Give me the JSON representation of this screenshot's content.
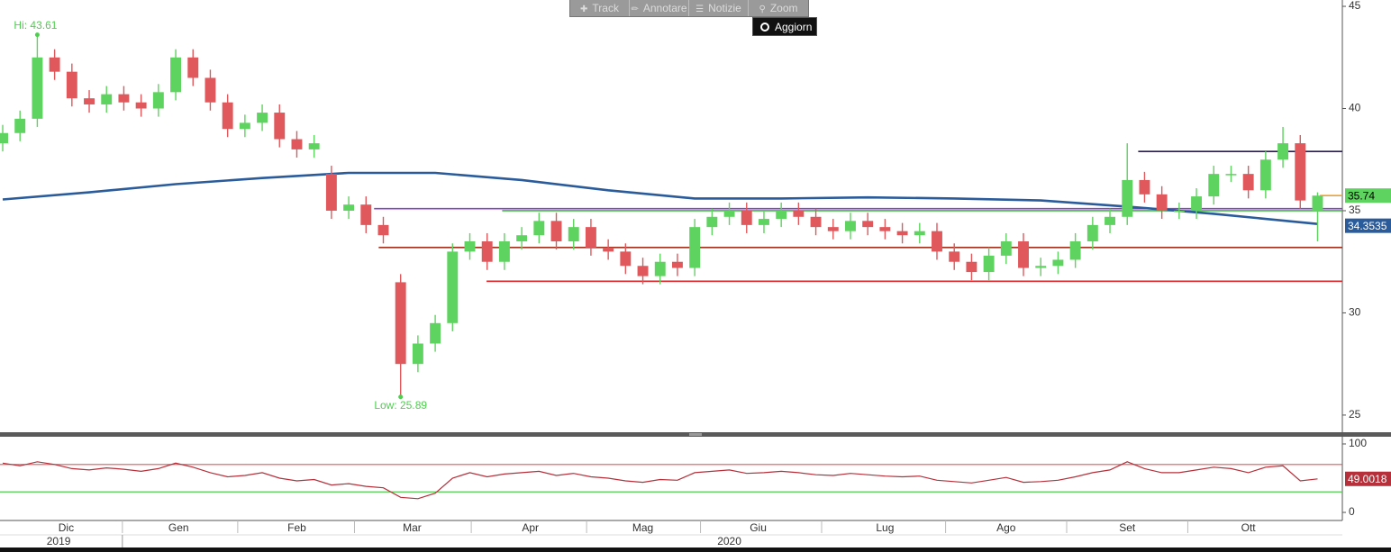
{
  "toolbar": {
    "buttons": [
      "Track",
      "Annotare",
      "Notizie",
      "Zoom"
    ],
    "refresh": "Aggiorn"
  },
  "chart_data": [
    {
      "type": "candlestick",
      "up_color": "#5fd35f",
      "down_color": "#e0585c",
      "xlim": [
        -0.47,
        232.3
      ],
      "ylim": [
        24.16,
        45.31
      ],
      "yticks": [
        25,
        30,
        35,
        40,
        45
      ],
      "xticks": [
        {
          "value": 11,
          "label": "Dic"
        },
        {
          "value": 30.5,
          "label": "Gen"
        },
        {
          "value": 51,
          "label": "Feb"
        },
        {
          "value": 71,
          "label": "Mar"
        },
        {
          "value": 91.5,
          "label": "Apr"
        },
        {
          "value": 111,
          "label": "Mag"
        },
        {
          "value": 131,
          "label": "Giu"
        },
        {
          "value": 153,
          "label": "Lug"
        },
        {
          "value": 174,
          "label": "Ago"
        },
        {
          "value": 195,
          "label": "Set"
        },
        {
          "value": 216,
          "label": "Ott"
        }
      ],
      "years": [
        {
          "value": 9.7,
          "label": "2019"
        },
        {
          "value": 126,
          "label": "2020"
        }
      ],
      "hi_label": "Hi: 43.61",
      "low_label": "Low: 25.89",
      "label_color": "#4ccf4c",
      "x": [
        0,
        3,
        6,
        9,
        12,
        15,
        18,
        21,
        24,
        27,
        30,
        33,
        36,
        39,
        42,
        45,
        48,
        51,
        54,
        57,
        60,
        63,
        66,
        69,
        72,
        75,
        78,
        81,
        84,
        87,
        90,
        93,
        96,
        99,
        102,
        105,
        108,
        111,
        114,
        117,
        120,
        123,
        126,
        129,
        132,
        135,
        138,
        141,
        144,
        147,
        150,
        153,
        156,
        159,
        162,
        165,
        168,
        171,
        174,
        177,
        180,
        183,
        186,
        189,
        192,
        195,
        198,
        201,
        204,
        207,
        210,
        213,
        216,
        219,
        222,
        225,
        228
      ],
      "open": [
        38.3,
        38.8,
        39.5,
        42.5,
        41.8,
        40.5,
        40.2,
        40.7,
        40.3,
        40.0,
        40.8,
        42.5,
        41.5,
        40.3,
        39.0,
        39.3,
        39.8,
        38.5,
        38.0,
        36.8,
        35.0,
        35.3,
        34.3,
        31.5,
        27.5,
        28.5,
        29.5,
        33.0,
        33.5,
        32.5,
        33.5,
        33.8,
        34.5,
        33.5,
        34.2,
        33.2,
        33.0,
        32.3,
        31.8,
        32.5,
        32.2,
        34.2,
        34.7,
        35.0,
        34.3,
        34.6,
        35.0,
        34.7,
        34.2,
        34.0,
        34.5,
        34.2,
        34.0,
        33.8,
        34.0,
        33.0,
        32.5,
        32.0,
        32.8,
        33.5,
        32.2,
        32.3,
        32.6,
        33.5,
        34.3,
        34.7,
        36.5,
        35.8,
        35.0,
        35.0,
        35.7,
        36.8,
        36.8,
        36.0,
        37.5,
        38.3,
        35.0
      ],
      "high": [
        39.2,
        39.9,
        43.61,
        42.9,
        42.2,
        40.9,
        41.1,
        41.1,
        40.7,
        41.2,
        42.9,
        42.9,
        41.9,
        40.7,
        39.7,
        40.2,
        40.2,
        38.9,
        38.7,
        37.2,
        35.7,
        35.7,
        34.7,
        31.9,
        28.9,
        29.9,
        33.4,
        33.9,
        33.9,
        33.9,
        34.2,
        34.9,
        34.9,
        34.6,
        34.6,
        33.6,
        33.4,
        32.7,
        32.9,
        32.9,
        34.6,
        35.1,
        35.4,
        35.4,
        35.0,
        35.4,
        35.4,
        35.1,
        34.6,
        34.9,
        34.9,
        34.6,
        34.4,
        34.4,
        34.4,
        33.4,
        32.9,
        33.2,
        33.9,
        33.9,
        32.7,
        33.0,
        33.9,
        34.7,
        35.1,
        38.3,
        36.9,
        36.2,
        35.4,
        36.1,
        37.2,
        37.2,
        37.2,
        37.9,
        39.1,
        38.7,
        35.9
      ],
      "low": [
        37.9,
        38.4,
        39.1,
        41.4,
        40.1,
        39.8,
        39.8,
        39.9,
        39.6,
        39.6,
        40.4,
        41.1,
        39.9,
        38.6,
        38.6,
        38.9,
        38.1,
        37.6,
        37.6,
        34.6,
        34.6,
        33.9,
        33.4,
        25.89,
        27.1,
        28.1,
        29.1,
        32.6,
        32.1,
        32.1,
        33.1,
        33.4,
        33.1,
        33.1,
        32.8,
        32.6,
        31.9,
        31.4,
        31.4,
        31.8,
        31.8,
        33.8,
        34.3,
        33.9,
        33.9,
        34.2,
        34.3,
        33.8,
        33.6,
        33.6,
        33.8,
        33.6,
        33.4,
        33.4,
        32.6,
        32.1,
        31.6,
        31.6,
        32.4,
        31.8,
        31.8,
        31.9,
        32.2,
        33.1,
        33.9,
        34.3,
        35.4,
        34.6,
        34.6,
        34.6,
        35.3,
        36.4,
        35.6,
        35.6,
        37.1,
        35.1,
        33.5
      ],
      "close": [
        38.8,
        39.5,
        42.5,
        41.8,
        40.5,
        40.2,
        40.7,
        40.3,
        40.0,
        40.8,
        42.5,
        41.5,
        40.3,
        39.0,
        39.3,
        39.8,
        38.5,
        38.0,
        38.3,
        35.0,
        35.3,
        34.3,
        33.8,
        27.5,
        28.5,
        29.5,
        33.0,
        33.5,
        32.5,
        33.5,
        33.8,
        34.5,
        33.5,
        34.2,
        33.2,
        33.0,
        32.3,
        31.8,
        32.5,
        32.2,
        34.2,
        34.7,
        35.0,
        34.3,
        34.6,
        35.0,
        34.7,
        34.2,
        34.0,
        34.5,
        34.2,
        34.0,
        33.8,
        34.0,
        33.0,
        32.5,
        32.0,
        32.8,
        33.5,
        32.2,
        32.3,
        32.6,
        33.5,
        34.3,
        34.7,
        36.5,
        35.8,
        35.0,
        35.0,
        35.7,
        36.8,
        36.8,
        36.0,
        37.5,
        38.3,
        35.5,
        35.74
      ],
      "ma": {
        "color": "#2a5b9b",
        "x": [
          0,
          15,
          30,
          45,
          60,
          75,
          90,
          105,
          120,
          135,
          150,
          165,
          180,
          195,
          210,
          228
        ],
        "values": [
          35.55,
          35.9,
          36.3,
          36.6,
          36.85,
          36.85,
          36.5,
          36.0,
          35.6,
          35.6,
          35.65,
          35.6,
          35.5,
          35.2,
          34.85,
          34.3535
        ]
      },
      "levels": [
        {
          "value": 35.1,
          "start": 64.4,
          "color": "#8a3fd1"
        },
        {
          "value": 35.0,
          "start": 86.6,
          "color": "#3cb83c"
        },
        {
          "value": 33.2,
          "start": 65.2,
          "color": "#a0301c"
        },
        {
          "value": 31.55,
          "start": 83.9,
          "color": "#e0252a"
        },
        {
          "value": 37.9,
          "start": 196.9,
          "color": "#2a2050"
        },
        {
          "value": 35.74,
          "start": 228.4,
          "color": "#f0a030"
        }
      ],
      "last_label_color": "#5fd35f"
    },
    {
      "type": "line",
      "color": "#b5303a",
      "xlim": [
        -0.47,
        232.3
      ],
      "ylim": [
        -11.8,
        110.5
      ],
      "yticks": [
        0,
        100
      ],
      "levels": [
        {
          "value": 70,
          "color": "#e0585c"
        },
        {
          "value": 30,
          "color": "#4ccf4c"
        }
      ],
      "x": [
        0,
        3,
        6,
        9,
        12,
        15,
        18,
        21,
        24,
        27,
        30,
        33,
        36,
        39,
        42,
        45,
        48,
        51,
        54,
        57,
        60,
        63,
        66,
        69,
        72,
        75,
        78,
        81,
        84,
        87,
        90,
        93,
        96,
        99,
        102,
        105,
        108,
        111,
        114,
        117,
        120,
        123,
        126,
        129,
        132,
        135,
        138,
        141,
        144,
        147,
        150,
        153,
        156,
        159,
        162,
        165,
        168,
        171,
        174,
        177,
        180,
        183,
        186,
        189,
        192,
        195,
        198,
        201,
        204,
        207,
        210,
        213,
        216,
        219,
        222,
        225,
        228
      ],
      "values": [
        72,
        68,
        74,
        70,
        64,
        62,
        65,
        63,
        60,
        64,
        72,
        66,
        58,
        52,
        54,
        58,
        50,
        46,
        48,
        40,
        42,
        38,
        36,
        22,
        20,
        28,
        50,
        58,
        52,
        56,
        58,
        60,
        54,
        57,
        52,
        50,
        46,
        44,
        48,
        47,
        58,
        60,
        62,
        57,
        58,
        60,
        58,
        55,
        54,
        57,
        55,
        53,
        52,
        53,
        47,
        45,
        43,
        47,
        51,
        44,
        45,
        47,
        52,
        58,
        62,
        74,
        64,
        58,
        58,
        62,
        66,
        64,
        58,
        66,
        68,
        46,
        49.0018
      ]
    }
  ]
}
